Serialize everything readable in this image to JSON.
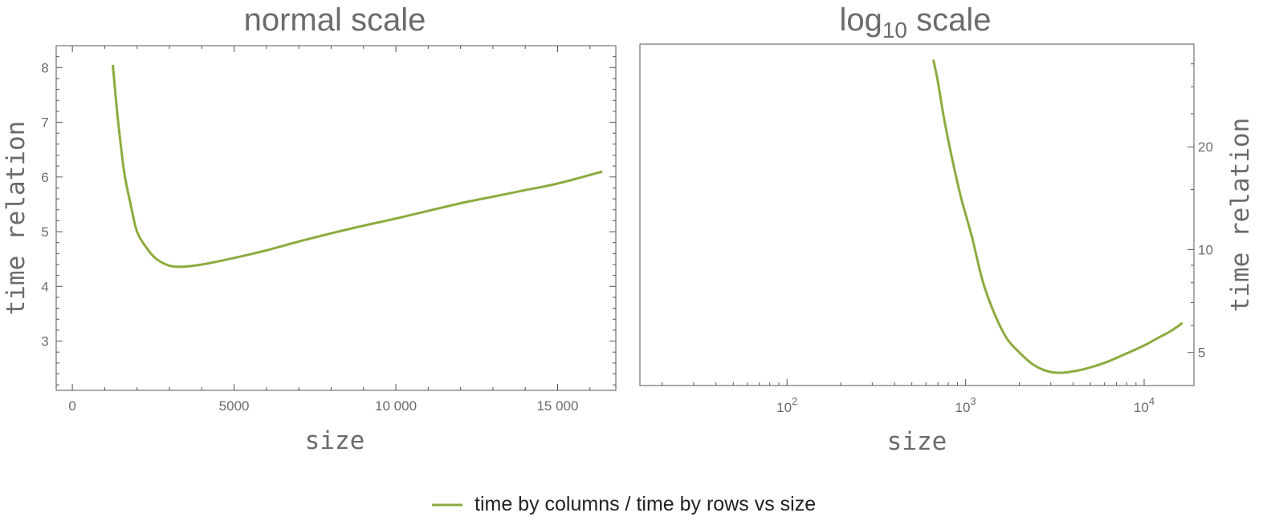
{
  "chart_data": [
    {
      "type": "line",
      "title": "normal scale",
      "xlabel": "size",
      "ylabel": "time relation",
      "x_scale": "linear",
      "y_scale": "linear",
      "xlim": [
        -500,
        16800
      ],
      "ylim": [
        2.1,
        8.4
      ],
      "x_ticks": [
        {
          "value": 0,
          "label": "0"
        },
        {
          "value": 5000,
          "label": "5000"
        },
        {
          "value": 10000,
          "label": "10 000"
        },
        {
          "value": 15000,
          "label": "15 000"
        }
      ],
      "y_ticks": [
        {
          "value": 3,
          "label": "3"
        },
        {
          "value": 4,
          "label": "4"
        },
        {
          "value": 5,
          "label": "5"
        },
        {
          "value": 6,
          "label": "6"
        },
        {
          "value": 7,
          "label": "7"
        },
        {
          "value": 8,
          "label": "8"
        }
      ],
      "y_axis_side": "left",
      "grid": false,
      "series": [
        {
          "name": "time by columns / time by rows vs size",
          "color": "#8cab3f",
          "x": [
            1250,
            1400,
            1600,
            1800,
            2000,
            2300,
            2600,
            3000,
            3400,
            4000,
            5000,
            6000,
            7000,
            8000,
            9000,
            10000,
            11000,
            12000,
            13000,
            14000,
            15000,
            16384
          ],
          "y": [
            8.05,
            7.1,
            6.1,
            5.5,
            5.0,
            4.7,
            4.5,
            4.38,
            4.36,
            4.4,
            4.52,
            4.66,
            4.82,
            4.97,
            5.11,
            5.24,
            5.38,
            5.52,
            5.64,
            5.76,
            5.88,
            6.1
          ]
        }
      ]
    },
    {
      "type": "line",
      "title": "log10 scale",
      "xlabel": "size",
      "ylabel": "time relation",
      "x_scale": "log",
      "y_scale": "log",
      "xlim": [
        15,
        19000
      ],
      "ylim": [
        4.0,
        40
      ],
      "x_ticks": [
        {
          "value": 100,
          "base": "10",
          "exp": "2"
        },
        {
          "value": 1000,
          "base": "10",
          "exp": "3"
        },
        {
          "value": 10000,
          "base": "10",
          "exp": "4"
        }
      ],
      "y_ticks": [
        {
          "value": 5,
          "label": "5"
        },
        {
          "value": 10,
          "label": "10"
        },
        {
          "value": 20,
          "label": "20"
        }
      ],
      "y_axis_side": "right",
      "grid": false,
      "series": [
        {
          "name": "time by columns / time by rows vs size",
          "color": "#8cab3f",
          "x": [
            660,
            700,
            760,
            850,
            950,
            1080,
            1250,
            1450,
            1700,
            2000,
            2400,
            2900,
            3400,
            4000,
            5000,
            6000,
            7000,
            8000,
            10000,
            12000,
            14000,
            16384
          ],
          "y": [
            36.0,
            31.0,
            24.0,
            18.0,
            14.0,
            11.0,
            8.05,
            6.5,
            5.5,
            5.0,
            4.6,
            4.4,
            4.36,
            4.4,
            4.52,
            4.66,
            4.82,
            4.97,
            5.24,
            5.52,
            5.76,
            6.1
          ]
        }
      ]
    }
  ],
  "titles": {
    "log_base": "log",
    "log_sub": "10",
    "log_rest": " scale"
  },
  "legend": {
    "label": "time by columns / time by rows vs size",
    "color": "#8cab3f",
    "placement": "bottom-center"
  }
}
